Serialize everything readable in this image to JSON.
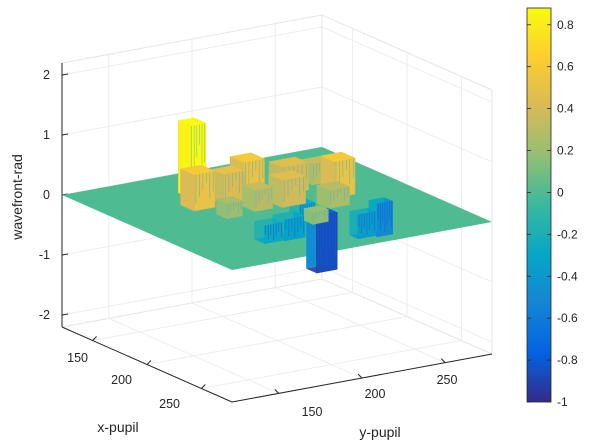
{
  "chart_data": {
    "type": "surface3d",
    "title": "",
    "xlabel": "x-pupil",
    "ylabel": "y-pupil",
    "zlabel": "wavefront-rad",
    "xticks": [
      "150",
      "200",
      "250"
    ],
    "yticks": [
      "150",
      "200",
      "250"
    ],
    "zticks": [
      "-2",
      "-1",
      "0",
      "1",
      "2"
    ],
    "zlim": [
      -2.2,
      2.2
    ],
    "grid": true,
    "colormap": "parula",
    "colorbar": {
      "range": [
        -1,
        0.88
      ],
      "ticks": [
        "-1",
        "-0.8",
        "-0.6",
        "-0.4",
        "-0.2",
        "0",
        "0.2",
        "0.4",
        "0.6",
        "0.8"
      ]
    },
    "blocks": [
      {
        "u": 0.33,
        "v": 0.18,
        "w": 0.06,
        "d": 0.07,
        "z": 1.2
      },
      {
        "u": 0.26,
        "v": 0.3,
        "w": 0.08,
        "d": 0.08,
        "z": 0.6
      },
      {
        "u": 0.38,
        "v": 0.3,
        "w": 0.08,
        "d": 0.07,
        "z": 0.5
      },
      {
        "u": 0.47,
        "v": 0.27,
        "w": 0.08,
        "d": 0.08,
        "z": 0.6
      },
      {
        "u": 0.52,
        "v": 0.42,
        "w": 0.09,
        "d": 0.08,
        "z": 0.45
      },
      {
        "u": 0.6,
        "v": 0.3,
        "w": 0.1,
        "d": 0.08,
        "z": 0.45
      },
      {
        "u": 0.72,
        "v": 0.42,
        "w": 0.08,
        "d": 0.08,
        "z": 0.6
      },
      {
        "u": 0.74,
        "v": 0.28,
        "w": 0.07,
        "d": 0.06,
        "z": 0.35
      },
      {
        "u": 0.42,
        "v": 0.42,
        "w": 0.07,
        "d": 0.07,
        "z": 0.35
      },
      {
        "u": 0.3,
        "v": 0.45,
        "w": 0.06,
        "d": 0.06,
        "z": 0.25
      },
      {
        "u": 0.64,
        "v": 0.52,
        "w": 0.08,
        "d": 0.07,
        "z": 0.3
      },
      {
        "u": 0.56,
        "v": 0.58,
        "w": 0.08,
        "d": 0.06,
        "z": -0.95
      },
      {
        "u": 0.8,
        "v": 0.58,
        "w": 0.06,
        "d": 0.05,
        "z": -0.55
      },
      {
        "u": 0.45,
        "v": 0.55,
        "w": 0.08,
        "d": 0.07,
        "z": -0.35
      },
      {
        "u": 0.58,
        "v": 0.45,
        "w": 0.06,
        "d": 0.06,
        "z": -0.3
      },
      {
        "u": 0.36,
        "v": 0.58,
        "w": 0.07,
        "d": 0.06,
        "z": -0.3
      },
      {
        "u": 0.68,
        "v": 0.65,
        "w": 0.07,
        "d": 0.05,
        "z": -0.4
      },
      {
        "u": 0.5,
        "v": 0.66,
        "w": 0.06,
        "d": 0.05,
        "z": 0.2
      }
    ]
  }
}
